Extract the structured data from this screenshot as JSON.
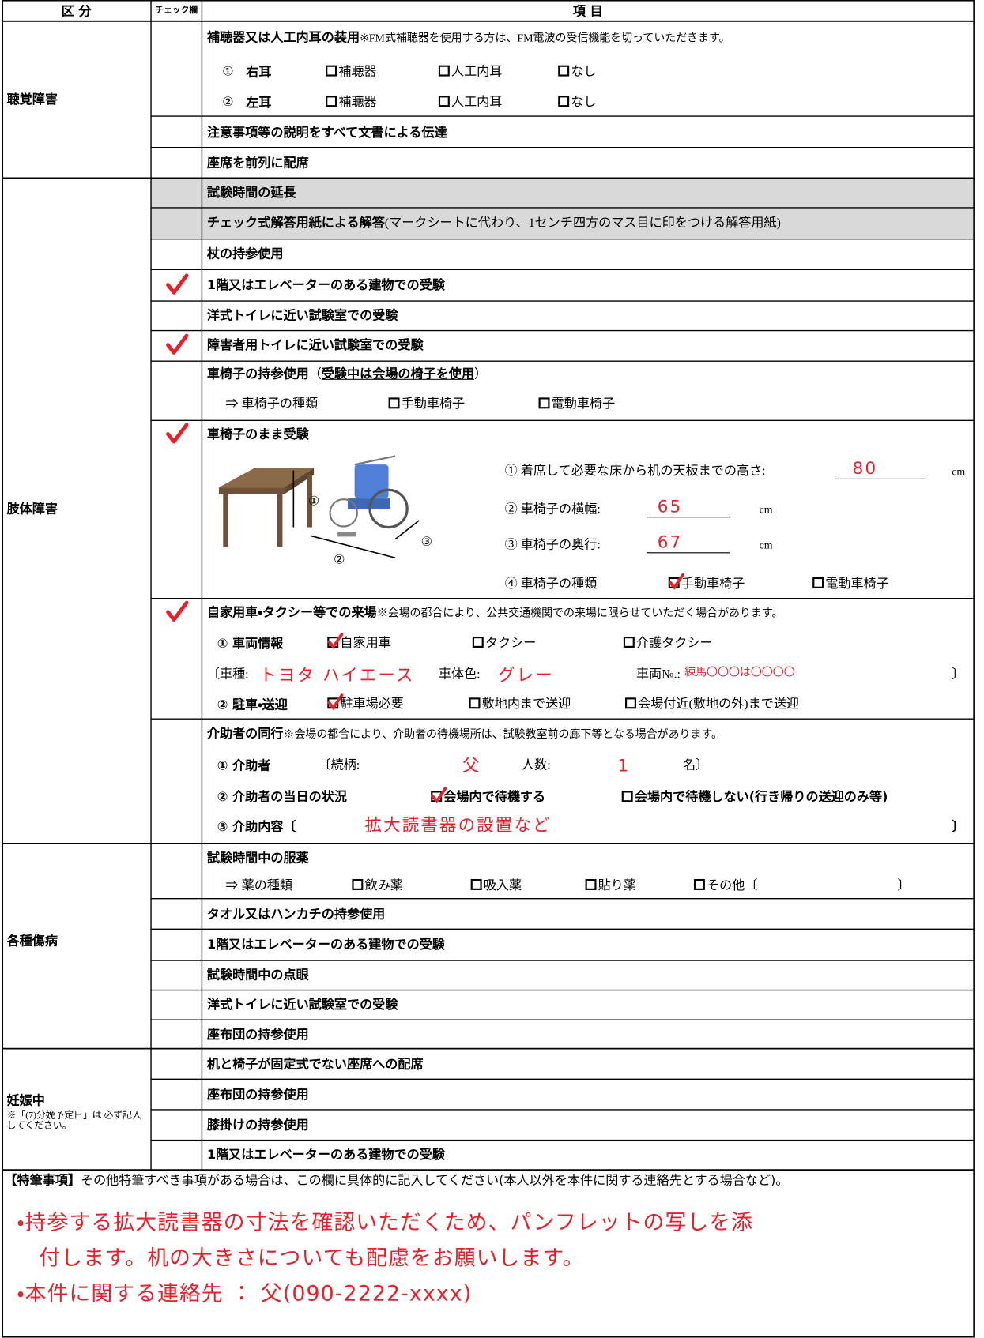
{
  "header": {
    "category": "区 分",
    "check": "チェック欄",
    "item": "項 目"
  },
  "hearing": {
    "label": "聴覚障害",
    "aid": {
      "title": "補聴器又は人工内耳の装用",
      "note": "※FM式補聴器を使用する方は、FM電波の受信機能を切っていただきます。"
    },
    "right": {
      "num": "①",
      "ear": "右耳",
      "options": [
        "補聴器",
        "人工内耳",
        "なし"
      ]
    },
    "left": {
      "num": "②",
      "ear": "左耳",
      "options": [
        "補聴器",
        "人工内耳",
        "なし"
      ]
    },
    "items": [
      "注意事項等の説明をすべて文書による伝達",
      "座席を前列に配席"
    ]
  },
  "limb": {
    "label": "肢体障害",
    "items": [
      {
        "text": "試験時間の延長",
        "checked": false
      },
      {
        "text": "チェック式解答用紙による解答",
        "note": "(マークシートに代わり、1センチ四方のマス目に印をつける解答用紙)",
        "checked": false
      },
      {
        "text": "杖の持参使用",
        "checked": false
      },
      {
        "text": "1階又はエレベーターのある建物での受験",
        "checked": true
      },
      {
        "text": "洋式トイレに近い試験室での受験",
        "checked": false
      },
      {
        "text": "障害者用トイレに近い試験室での受験",
        "checked": true
      }
    ],
    "own_wheelchair": {
      "title": "車椅子の持参使用",
      "paren_open": "（",
      "note": "受験中は会場の椅子を使用",
      "paren_close": "）",
      "checked": false,
      "type_label": "⇒ 車椅子の種類",
      "options": [
        "手動車椅子",
        "電動車椅子"
      ],
      "selected": [
        false,
        false
      ]
    },
    "stay_in_wheelchair": {
      "title": "車椅子のまま受験",
      "checked": true,
      "figure_labels": [
        "①",
        "②",
        "③"
      ],
      "q1": {
        "label": "① 着席して必要な床から机の天板までの高さ:",
        "answer": "80",
        "unit": "cm"
      },
      "q2": {
        "label": "② 車椅子の横幅:",
        "answer": "65",
        "unit": "cm"
      },
      "q3": {
        "label": "③ 車椅子の奥行:",
        "answer": "67",
        "unit": "cm"
      },
      "q4": {
        "label": "④ 車椅子の種類",
        "options": [
          "手動車椅子",
          "電動車椅子"
        ],
        "selected": [
          true,
          false
        ]
      }
    },
    "car": {
      "title": "自家用車・タクシー等での来場",
      "note": "※会場の都合により、公共交通機関での来場に限らせていただく場合があります。",
      "checked": true,
      "vehicle": {
        "label": "① 車両情報",
        "options": [
          "自家用車",
          "タクシー",
          "介護タクシー"
        ],
        "selected": [
          true,
          false,
          false
        ]
      },
      "details": {
        "type_label": "〔車種:",
        "type": "トヨタ ハイエース",
        "color_label": "車体色:",
        "color": "グレー",
        "number_label": "車両№.:",
        "number": "練馬〇〇〇は〇〇〇〇",
        "close": "〕"
      },
      "parking": {
        "label": "② 駐車・送迎",
        "options": [
          "駐車場必要",
          "敷地内まで送迎",
          "会場付近(敷地の外)まで送迎"
        ],
        "selected": [
          true,
          false,
          false
        ]
      }
    },
    "attendant": {
      "title": "介助者の同行",
      "note": "※会場の都合により、介助者の待機場所は、試験教室前の廊下等となる場合があります。",
      "checked": false,
      "who": {
        "label": "① 介助者",
        "relation_label": "〔続柄:",
        "relation": "父",
        "count_label": "人数:",
        "count": "1",
        "close": "名〕"
      },
      "status": {
        "label": "② 介助者の当日の状況",
        "options": [
          "会場内で待機する",
          "会場内で待機しない(行き帰りの送迎のみ等)"
        ],
        "selected": [
          true,
          false
        ]
      },
      "content": {
        "label": "③ 介助内容〔",
        "value": "拡大読書器の設置など",
        "close": "〕"
      }
    }
  },
  "illness": {
    "label": "各種傷病",
    "medication": {
      "title": "試験時間中の服薬",
      "type_label": "⇒ 薬の種類",
      "options": [
        "飲み薬",
        "吸入薬",
        "貼り薬",
        "その他〔"
      ],
      "selected": [
        false,
        false,
        false,
        false
      ],
      "close": "〕"
    },
    "items": [
      "タオル又はハンカチの持参使用",
      "1階又はエレベーターのある建物での受験",
      "試験時間中の点眼",
      "洋式トイレに近い試験室での受験",
      "座布団の持参使用"
    ]
  },
  "pregnancy": {
    "label": "妊娠中",
    "note": "※「(7)分娩予定日」は 必ず記入してください。",
    "items": [
      "机と椅子が固定式でない座席への配席",
      "座布団の持参使用",
      "膝掛けの持参使用",
      "1階又はエレベーターのある建物での受験"
    ]
  },
  "remarks": {
    "title": "【特筆事項】",
    "instruction": "その他特筆すべき事項がある場合は、この欄に具体的に記入してください(本人以外を本件に関する連絡先とする場合など)。",
    "lines": [
      "・持参する拡大読書器の寸法を確認いただくため、パンフレットの写しを添",
      "　付します。机の大きさについても配慮をお願いします。",
      "・本件に関する連絡先 ： 父(090-2222-xxxx)"
    ]
  }
}
